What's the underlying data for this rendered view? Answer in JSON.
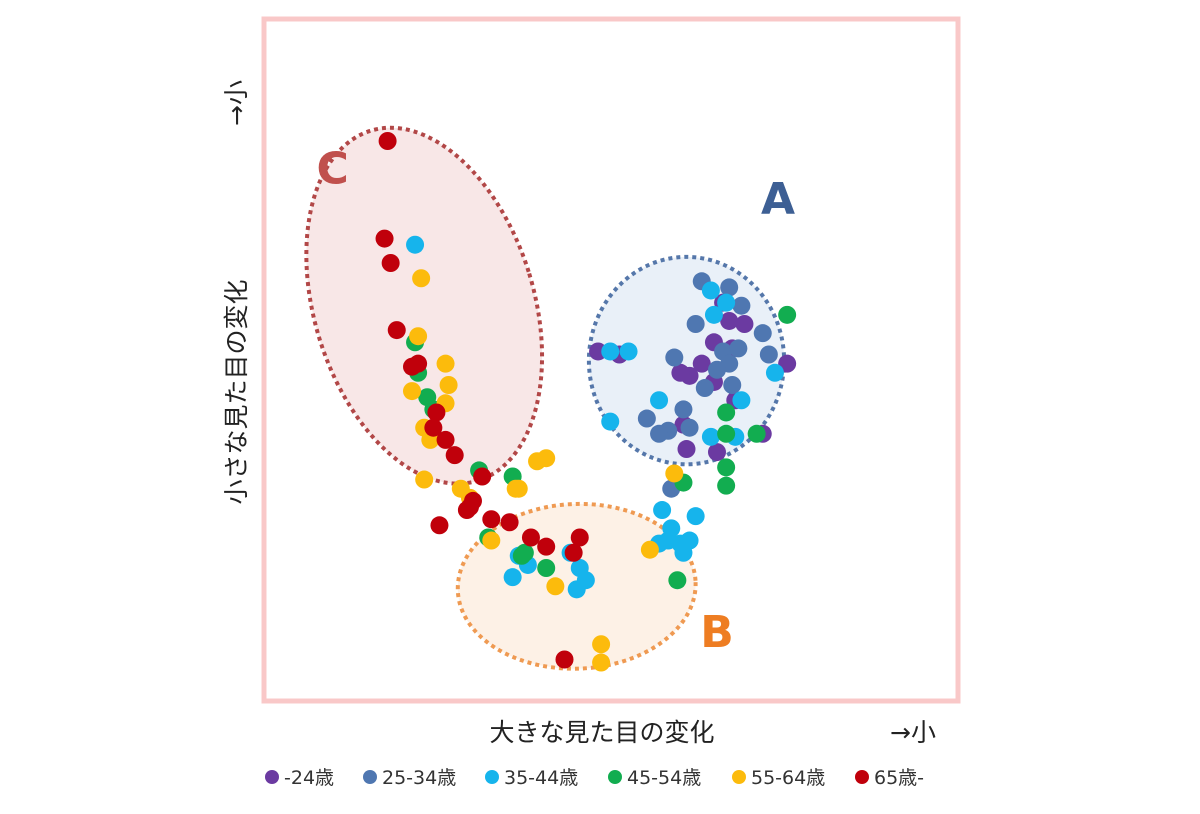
{
  "chart_data": {
    "type": "scatter",
    "xlabel": "大きな見た目の変化",
    "ylabel": "小さな見た目の変化",
    "x_arrow": "→小",
    "y_arrow": "→小",
    "xlim": [
      0,
      100
    ],
    "ylim": [
      0,
      100
    ],
    "grid": false,
    "legend": {
      "placement": "bottom"
    },
    "frame_color": "#f9c8c8",
    "clusters": [
      {
        "label": "A",
        "color": "#3d5f94",
        "fill": "#e9f0f8",
        "stroke": "#5577aa",
        "cx": 65,
        "cy": 54,
        "rx": 16,
        "ry": 17,
        "rot": 0,
        "label_x": 80,
        "label_y": 80
      },
      {
        "label": "B",
        "color": "#ee7d22",
        "fill": "#fdf1e6",
        "stroke": "#ef9a52",
        "cx": 47,
        "cy": 17,
        "rx": 19.5,
        "ry": 13.5,
        "rot": -2,
        "label_x": 70,
        "label_y": 9
      },
      {
        "label": "C",
        "color": "#c0504d",
        "fill": "#f8e7e7",
        "stroke": "#b24747",
        "cx": 22,
        "cy": 63,
        "rx": 18,
        "ry": 30,
        "rot": -17,
        "label_x": 7,
        "label_y": 85
      }
    ],
    "series": [
      {
        "name": "-24歳",
        "color": "#6b3aa1",
        "points": [
          [
            67.5,
            53.5
          ],
          [
            69.5,
            50.5
          ],
          [
            73.0,
            47.5
          ],
          [
            64.5,
            43.5
          ],
          [
            65.0,
            39.5
          ],
          [
            70.0,
            39.0
          ],
          [
            77.5,
            42.0
          ],
          [
            81.5,
            53.5
          ],
          [
            72.5,
            56.0
          ],
          [
            69.5,
            57.0
          ],
          [
            72.0,
            60.5
          ],
          [
            74.5,
            60.0
          ],
          [
            65.5,
            51.5
          ],
          [
            50.5,
            55.5
          ],
          [
            54.0,
            55.0
          ],
          [
            64.0,
            52.0
          ],
          [
            71.0,
            63.5
          ]
        ]
      },
      {
        "name": "25-34歳",
        "color": "#4f77b1",
        "points": [
          [
            67.5,
            67.0
          ],
          [
            74.0,
            63.0
          ],
          [
            72.0,
            66.0
          ],
          [
            66.5,
            60.0
          ],
          [
            71.0,
            55.5
          ],
          [
            72.0,
            53.5
          ],
          [
            78.5,
            55.0
          ],
          [
            63.0,
            54.5
          ],
          [
            70.0,
            52.5
          ],
          [
            62.0,
            42.5
          ],
          [
            65.5,
            43.0
          ],
          [
            58.5,
            44.5
          ],
          [
            64.5,
            46.0
          ],
          [
            68.0,
            49.5
          ],
          [
            62.5,
            33.0
          ],
          [
            77.5,
            58.5
          ],
          [
            60.5,
            42.0
          ],
          [
            73.5,
            56.0
          ],
          [
            72.5,
            50.0
          ]
        ]
      },
      {
        "name": "35-44歳",
        "color": "#16b4ec",
        "points": [
          [
            20.5,
            73.0
          ],
          [
            55.5,
            55.5
          ],
          [
            52.5,
            55.5
          ],
          [
            52.5,
            44.0
          ],
          [
            60.5,
            47.5
          ],
          [
            69.0,
            41.5
          ],
          [
            73.0,
            41.5
          ],
          [
            74.0,
            47.5
          ],
          [
            79.5,
            52.0
          ],
          [
            69.5,
            61.5
          ],
          [
            69.0,
            65.5
          ],
          [
            71.5,
            63.5
          ],
          [
            61.0,
            29.5
          ],
          [
            62.5,
            26.5
          ],
          [
            66.5,
            28.5
          ],
          [
            60.5,
            24.0
          ],
          [
            62.0,
            24.5
          ],
          [
            64.0,
            24.0
          ],
          [
            64.5,
            22.5
          ],
          [
            46.0,
            22.5
          ],
          [
            47.5,
            20.0
          ],
          [
            48.5,
            18.0
          ],
          [
            47.0,
            16.5
          ],
          [
            36.5,
            18.5
          ],
          [
            37.5,
            22.0
          ],
          [
            39.0,
            20.5
          ],
          [
            65.5,
            24.5
          ]
        ]
      },
      {
        "name": "45-54歳",
        "color": "#12ad50",
        "points": [
          [
            81.5,
            61.5
          ],
          [
            71.5,
            45.5
          ],
          [
            71.5,
            42.0
          ],
          [
            76.5,
            42.0
          ],
          [
            71.5,
            36.5
          ],
          [
            71.5,
            33.5
          ],
          [
            64.5,
            34.0
          ],
          [
            63.5,
            18.0
          ],
          [
            20.5,
            57.0
          ],
          [
            21.0,
            52.0
          ],
          [
            23.5,
            46.0
          ],
          [
            31.0,
            36.0
          ],
          [
            36.5,
            35.0
          ],
          [
            32.5,
            25.0
          ],
          [
            38.0,
            22.0
          ],
          [
            38.5,
            22.5
          ],
          [
            42.0,
            20.0
          ],
          [
            22.5,
            48.0
          ]
        ]
      },
      {
        "name": "55-64歳",
        "color": "#fcbb0c",
        "points": [
          [
            21.5,
            67.5
          ],
          [
            21.0,
            58.0
          ],
          [
            25.5,
            53.5
          ],
          [
            26.0,
            50.0
          ],
          [
            20.0,
            49.0
          ],
          [
            25.5,
            47.0
          ],
          [
            22.0,
            43.0
          ],
          [
            23.0,
            41.0
          ],
          [
            22.0,
            34.5
          ],
          [
            28.0,
            33.0
          ],
          [
            29.5,
            31.5
          ],
          [
            33.0,
            24.5
          ],
          [
            37.0,
            33.0
          ],
          [
            37.5,
            33.0
          ],
          [
            40.5,
            37.5
          ],
          [
            42.0,
            38.0
          ],
          [
            43.5,
            17.0
          ],
          [
            63.0,
            35.5
          ],
          [
            51.0,
            7.5
          ],
          [
            51.0,
            4.5
          ],
          [
            59.0,
            23.0
          ]
        ]
      },
      {
        "name": "65歳-",
        "color": "#c0000b",
        "points": [
          [
            16.0,
            90.0
          ],
          [
            15.5,
            74.0
          ],
          [
            16.5,
            70.0
          ],
          [
            17.5,
            59.0
          ],
          [
            21.0,
            53.5
          ],
          [
            20.0,
            53.0
          ],
          [
            24.0,
            45.5
          ],
          [
            23.5,
            43.0
          ],
          [
            25.5,
            41.0
          ],
          [
            27.0,
            38.5
          ],
          [
            31.5,
            35.0
          ],
          [
            30.0,
            31.0
          ],
          [
            29.0,
            29.5
          ],
          [
            24.5,
            27.0
          ],
          [
            33.0,
            28.0
          ],
          [
            36.0,
            27.5
          ],
          [
            39.5,
            25.0
          ],
          [
            42.0,
            23.5
          ],
          [
            47.5,
            25.0
          ],
          [
            46.5,
            22.5
          ],
          [
            45.0,
            5.0
          ],
          [
            29.5,
            30.0
          ]
        ]
      }
    ]
  }
}
